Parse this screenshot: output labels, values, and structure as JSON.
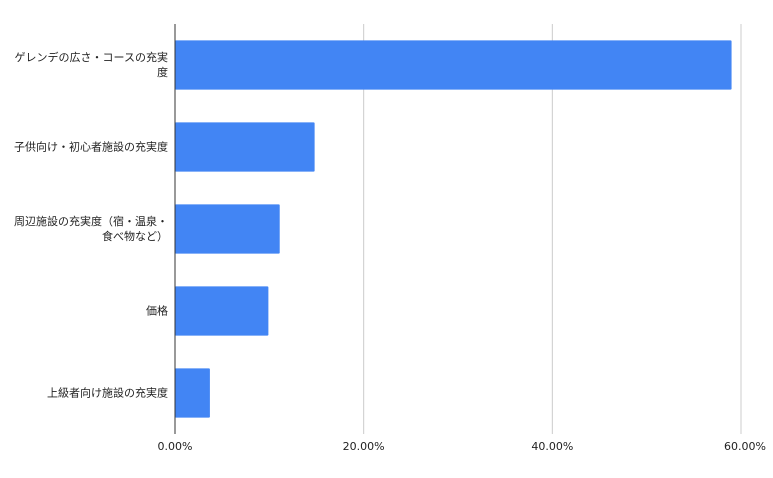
{
  "chart_data": {
    "type": "bar",
    "orientation": "horizontal",
    "categories": [
      "ゲレンデの広さ・コースの充実度",
      "子供向け・初心者施設の充実度",
      "周辺施設の充実度（宿・温泉・食べ物など）",
      "価格",
      "上級者向け施設の充実度"
    ],
    "values": [
      59.0,
      14.8,
      11.1,
      9.9,
      3.7
    ],
    "xlim": [
      0,
      60
    ],
    "xticks": [
      "0.00%",
      "20.00%",
      "40.00%",
      "60.00%"
    ],
    "grid": true,
    "bar_color": "#4285f4",
    "legend": "none"
  }
}
